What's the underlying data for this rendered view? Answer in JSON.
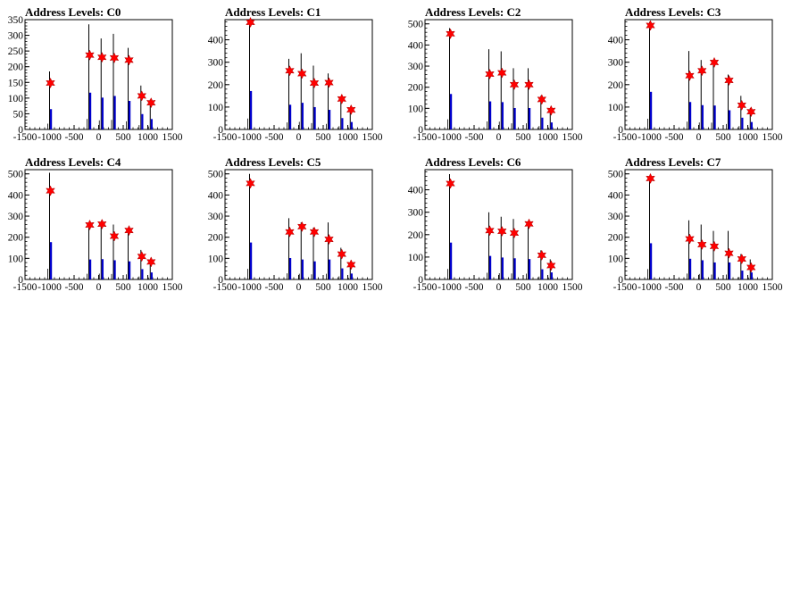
{
  "chart_data": [
    {
      "type": "bar",
      "title": "Address Levels: C0",
      "ylim": [
        0,
        350
      ],
      "yticks": [
        0,
        50,
        100,
        150,
        200,
        250,
        300,
        350
      ],
      "xlim": [
        -1500,
        1500
      ],
      "xticks": [
        -1500,
        -1000,
        -500,
        0,
        500,
        1000,
        1500
      ],
      "bars": [
        [
          -1000,
          185
        ],
        [
          -200,
          335
        ],
        [
          50,
          290
        ],
        [
          300,
          305
        ],
        [
          600,
          260
        ],
        [
          860,
          140
        ],
        [
          1050,
          95
        ]
      ],
      "markers": [
        [
          -1000,
          148
        ],
        [
          -200,
          237
        ],
        [
          50,
          230
        ],
        [
          300,
          228
        ],
        [
          600,
          221
        ],
        [
          860,
          107
        ],
        [
          1050,
          85
        ]
      ]
    },
    {
      "type": "bar",
      "title": "Address Levels: C1",
      "ylim": [
        0,
        490
      ],
      "yticks": [
        0,
        100,
        200,
        300,
        400
      ],
      "xlim": [
        -1500,
        1500
      ],
      "xticks": [
        -1500,
        -1000,
        -500,
        0,
        500,
        1000,
        1500
      ],
      "bars": [
        [
          -1000,
          490
        ],
        [
          -200,
          315
        ],
        [
          50,
          340
        ],
        [
          300,
          285
        ],
        [
          600,
          250
        ],
        [
          860,
          145
        ],
        [
          1050,
          95
        ]
      ],
      "markers": [
        [
          -1000,
          478
        ],
        [
          -200,
          262
        ],
        [
          50,
          249
        ],
        [
          300,
          207
        ],
        [
          600,
          209
        ],
        [
          860,
          136
        ],
        [
          1050,
          88
        ]
      ]
    },
    {
      "type": "bar",
      "title": "Address Levels: C2",
      "ylim": [
        0,
        520
      ],
      "yticks": [
        0,
        100,
        200,
        300,
        400,
        500
      ],
      "xlim": [
        -1500,
        1500
      ],
      "xticks": [
        -1500,
        -1000,
        -500,
        0,
        500,
        1000,
        1500
      ],
      "bars": [
        [
          -1000,
          480
        ],
        [
          -200,
          380
        ],
        [
          50,
          370
        ],
        [
          300,
          290
        ],
        [
          600,
          290
        ],
        [
          860,
          160
        ],
        [
          1050,
          95
        ]
      ],
      "markers": [
        [
          -1000,
          453
        ],
        [
          -200,
          262
        ],
        [
          50,
          268
        ],
        [
          300,
          212
        ],
        [
          600,
          212
        ],
        [
          860,
          142
        ],
        [
          1050,
          90
        ]
      ]
    },
    {
      "type": "bar",
      "title": "Address Levels: C3",
      "ylim": [
        0,
        490
      ],
      "yticks": [
        0,
        100,
        200,
        300,
        400
      ],
      "xlim": [
        -1500,
        1500
      ],
      "xticks": [
        -1500,
        -1000,
        -500,
        0,
        500,
        1000,
        1500
      ],
      "bars": [
        [
          -1000,
          480
        ],
        [
          -200,
          350
        ],
        [
          50,
          310
        ],
        [
          300,
          305
        ],
        [
          600,
          245
        ],
        [
          860,
          150
        ],
        [
          1050,
          95
        ]
      ],
      "markers": [
        [
          -1000,
          464
        ],
        [
          -200,
          240
        ],
        [
          50,
          262
        ],
        [
          300,
          299
        ],
        [
          600,
          219
        ],
        [
          860,
          108
        ],
        [
          1050,
          79
        ]
      ]
    },
    {
      "type": "bar",
      "title": "Address Levels: C4",
      "ylim": [
        0,
        520
      ],
      "yticks": [
        0,
        100,
        200,
        300,
        400,
        500
      ],
      "xlim": [
        -1500,
        1500
      ],
      "xticks": [
        -1500,
        -1000,
        -500,
        0,
        500,
        1000,
        1500
      ],
      "bars": [
        [
          -1000,
          505
        ],
        [
          -200,
          270
        ],
        [
          50,
          275
        ],
        [
          300,
          260
        ],
        [
          600,
          245
        ],
        [
          860,
          140
        ],
        [
          1050,
          95
        ]
      ],
      "markers": [
        [
          -1000,
          420
        ],
        [
          -200,
          258
        ],
        [
          50,
          262
        ],
        [
          300,
          205
        ],
        [
          600,
          232
        ],
        [
          860,
          109
        ],
        [
          1050,
          83
        ]
      ]
    },
    {
      "type": "bar",
      "title": "Address Levels: C5",
      "ylim": [
        0,
        520
      ],
      "yticks": [
        0,
        100,
        200,
        300,
        400,
        500
      ],
      "xlim": [
        -1500,
        1500
      ],
      "xticks": [
        -1500,
        -1000,
        -500,
        0,
        500,
        1000,
        1500
      ],
      "bars": [
        [
          -1000,
          500
        ],
        [
          -200,
          290
        ],
        [
          50,
          270
        ],
        [
          300,
          245
        ],
        [
          600,
          270
        ],
        [
          860,
          150
        ],
        [
          1050,
          80
        ]
      ],
      "markers": [
        [
          -1000,
          455
        ],
        [
          -200,
          225
        ],
        [
          50,
          250
        ],
        [
          300,
          225
        ],
        [
          600,
          190
        ],
        [
          860,
          120
        ],
        [
          1050,
          70
        ]
      ]
    },
    {
      "type": "bar",
      "title": "Address Levels: C6",
      "ylim": [
        0,
        490
      ],
      "yticks": [
        0,
        100,
        200,
        300,
        400
      ],
      "xlim": [
        -1500,
        1500
      ],
      "xticks": [
        -1500,
        -1000,
        -500,
        0,
        500,
        1000,
        1500
      ],
      "bars": [
        [
          -1000,
          470
        ],
        [
          -200,
          300
        ],
        [
          50,
          280
        ],
        [
          300,
          270
        ],
        [
          600,
          260
        ],
        [
          860,
          130
        ],
        [
          1050,
          90
        ]
      ],
      "markers": [
        [
          -1000,
          428
        ],
        [
          -200,
          218
        ],
        [
          50,
          215
        ],
        [
          300,
          207
        ],
        [
          600,
          248
        ],
        [
          860,
          108
        ],
        [
          1050,
          62
        ]
      ]
    },
    {
      "type": "bar",
      "title": "Address Levels: C7",
      "ylim": [
        0,
        520
      ],
      "yticks": [
        0,
        100,
        200,
        300,
        400,
        500
      ],
      "xlim": [
        -1500,
        1500
      ],
      "xticks": [
        -1500,
        -1000,
        -500,
        0,
        500,
        1000,
        1500
      ],
      "bars": [
        [
          -1000,
          490
        ],
        [
          -200,
          280
        ],
        [
          50,
          260
        ],
        [
          300,
          230
        ],
        [
          600,
          230
        ],
        [
          860,
          120
        ],
        [
          1050,
          95
        ]
      ],
      "markers": [
        [
          -1000,
          478
        ],
        [
          -200,
          192
        ],
        [
          50,
          165
        ],
        [
          300,
          157
        ],
        [
          600,
          124
        ],
        [
          860,
          97
        ],
        [
          1050,
          57
        ]
      ]
    }
  ],
  "colors": {
    "bar_outline": "#000000",
    "bar_fill": "#0000cc",
    "marker": "#ff0000",
    "axis": "#000000"
  }
}
